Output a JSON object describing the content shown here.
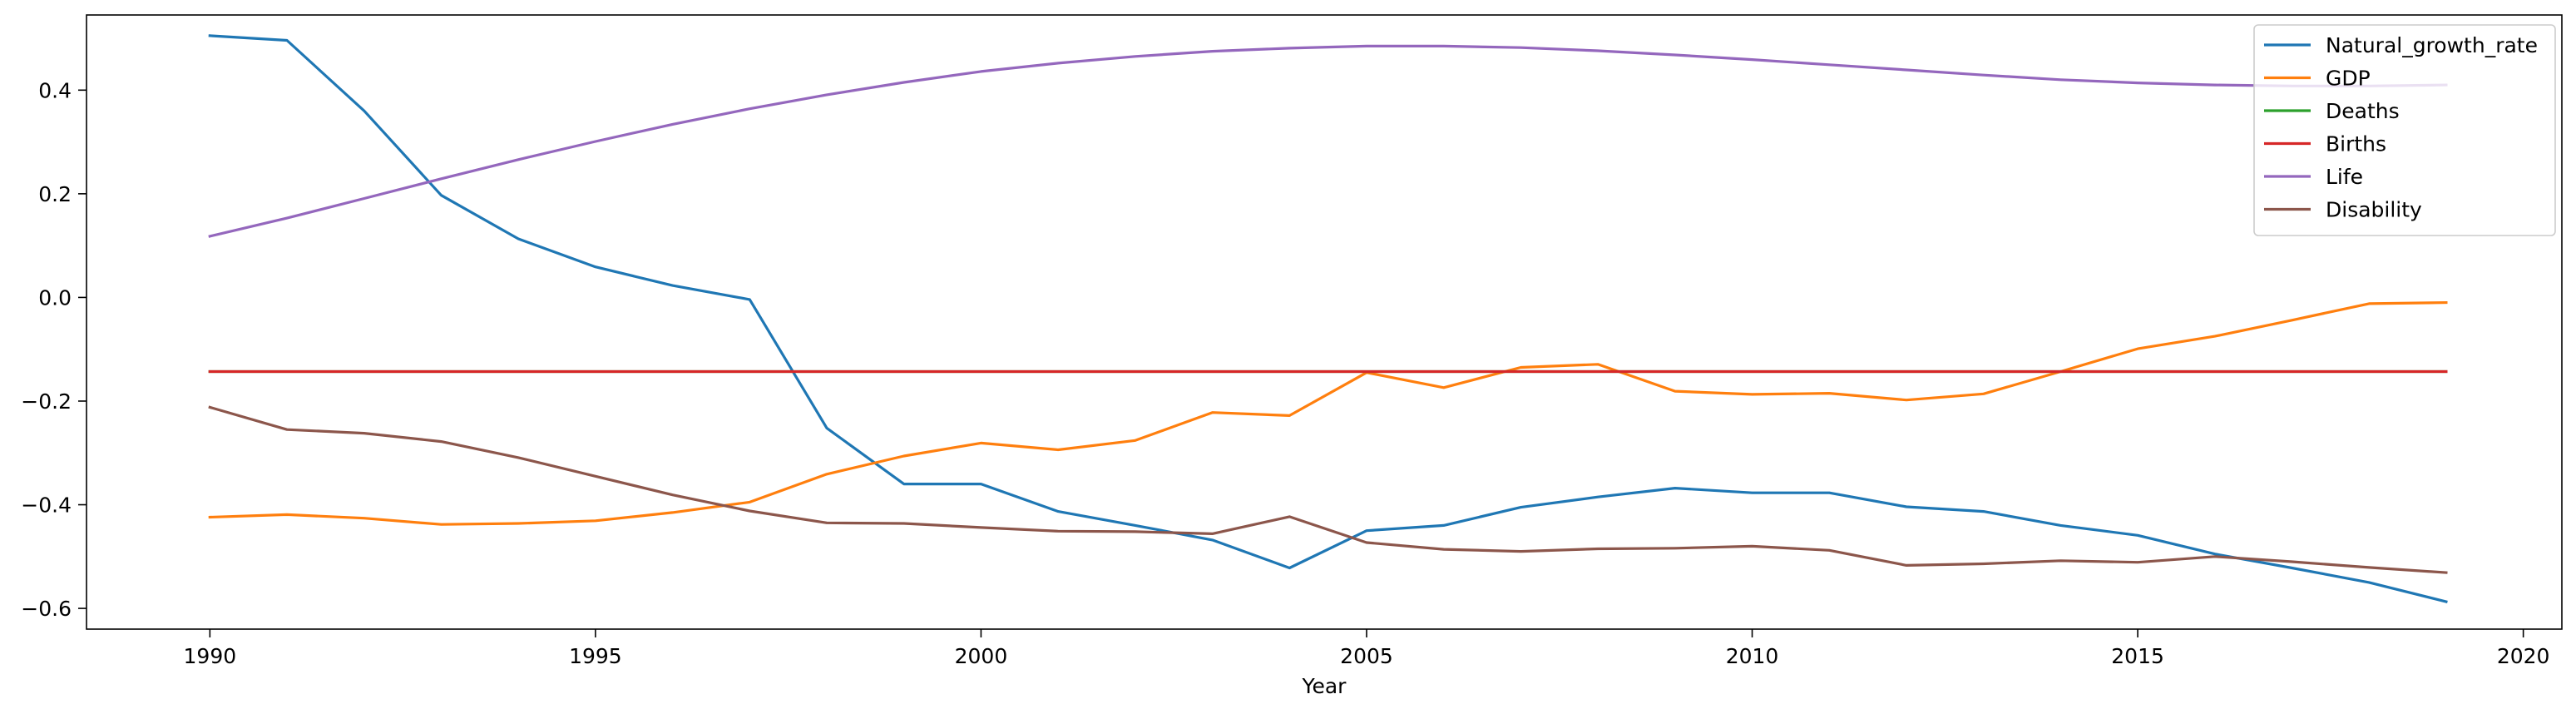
{
  "chart_data": {
    "type": "line",
    "title": "",
    "xlabel": "Year",
    "ylabel": "",
    "xlim": [
      1988.4,
      2020.5
    ],
    "ylim": [
      -0.64,
      0.545
    ],
    "x_ticks": [
      1990,
      1995,
      2000,
      2005,
      2010,
      2015,
      2020
    ],
    "x_tick_labels": [
      "1990",
      "1995",
      "2000",
      "2005",
      "2010",
      "2015",
      "2020"
    ],
    "y_ticks": [
      0.4,
      0.2,
      0.0,
      -0.2,
      -0.4,
      -0.6
    ],
    "y_tick_labels": [
      "0.4",
      "0.2",
      "0.0",
      "−0.2",
      "−0.4",
      "−0.6"
    ],
    "grid": false,
    "legend_position": "top-right",
    "x": [
      1990,
      1991,
      1992,
      1993,
      1994,
      1995,
      1996,
      1997,
      1998,
      1999,
      2000,
      2001,
      2002,
      2003,
      2004,
      2005,
      2006,
      2007,
      2008,
      2009,
      2010,
      2011,
      2012,
      2013,
      2014,
      2015,
      2016,
      2017,
      2018,
      2019
    ],
    "series": [
      {
        "name": "Natural_growth_rate",
        "color": "#1f77b4",
        "values": [
          0.505,
          0.496,
          0.36,
          0.197,
          0.113,
          0.059,
          0.023,
          -0.004,
          -0.252,
          -0.36,
          -0.36,
          -0.413,
          -0.44,
          -0.468,
          -0.522,
          -0.45,
          -0.44,
          -0.405,
          -0.385,
          -0.368,
          -0.377,
          -0.377,
          -0.404,
          -0.413,
          -0.44,
          -0.459,
          -0.495,
          -0.522,
          -0.55,
          -0.587
        ]
      },
      {
        "name": "GDP",
        "color": "#ff7f0e",
        "values": [
          -0.424,
          -0.419,
          -0.426,
          -0.438,
          -0.436,
          -0.431,
          -0.415,
          -0.395,
          -0.341,
          -0.306,
          -0.281,
          -0.294,
          -0.276,
          -0.222,
          -0.228,
          -0.145,
          -0.174,
          -0.135,
          -0.129,
          -0.181,
          -0.187,
          -0.185,
          -0.198,
          -0.186,
          -0.143,
          -0.099,
          -0.075,
          -0.044,
          -0.012,
          -0.01
        ]
      },
      {
        "name": "Deaths",
        "color": "#2ca02c",
        "values": [
          -0.143,
          -0.143,
          -0.143,
          -0.143,
          -0.143,
          -0.143,
          -0.143,
          -0.143,
          -0.143,
          -0.143,
          -0.143,
          -0.143,
          -0.143,
          -0.143,
          -0.143,
          -0.143,
          -0.143,
          -0.143,
          -0.143,
          -0.143,
          -0.143,
          -0.143,
          -0.143,
          -0.143,
          -0.143,
          -0.143,
          -0.143,
          -0.143,
          -0.143,
          -0.143
        ]
      },
      {
        "name": "Births",
        "color": "#d62728",
        "values": [
          -0.143,
          -0.143,
          -0.143,
          -0.143,
          -0.143,
          -0.143,
          -0.143,
          -0.143,
          -0.143,
          -0.143,
          -0.143,
          -0.143,
          -0.143,
          -0.143,
          -0.143,
          -0.143,
          -0.143,
          -0.143,
          -0.143,
          -0.143,
          -0.143,
          -0.143,
          -0.143,
          -0.143,
          -0.143,
          -0.143,
          -0.143,
          -0.143,
          -0.143,
          -0.143
        ]
      },
      {
        "name": "Life",
        "color": "#9467bd",
        "values": [
          0.118,
          0.153,
          0.191,
          0.229,
          0.266,
          0.301,
          0.334,
          0.364,
          0.391,
          0.415,
          0.436,
          0.452,
          0.465,
          0.475,
          0.481,
          0.485,
          0.485,
          0.482,
          0.476,
          0.468,
          0.459,
          0.449,
          0.439,
          0.429,
          0.42,
          0.414,
          0.41,
          0.408,
          0.408,
          0.41
        ]
      },
      {
        "name": "Disability",
        "color": "#8c564b",
        "values": [
          -0.212,
          -0.255,
          -0.262,
          -0.278,
          -0.309,
          -0.345,
          -0.381,
          -0.412,
          -0.435,
          -0.436,
          -0.444,
          -0.451,
          -0.452,
          -0.456,
          -0.423,
          -0.473,
          -0.486,
          -0.49,
          -0.485,
          -0.484,
          -0.48,
          -0.488,
          -0.517,
          -0.514,
          -0.508,
          -0.511,
          -0.5,
          -0.51,
          -0.521,
          -0.531
        ]
      }
    ]
  }
}
